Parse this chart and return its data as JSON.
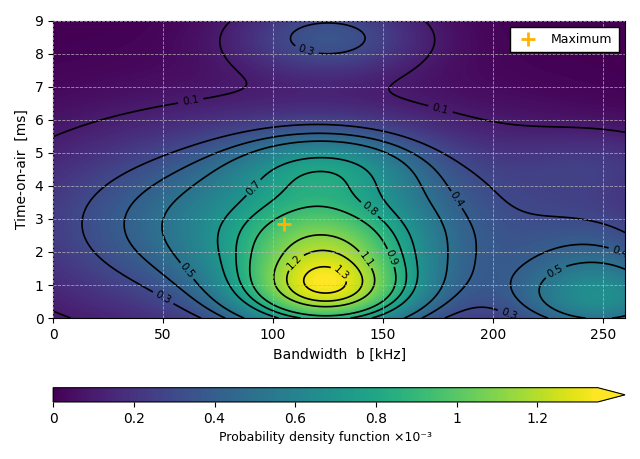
{
  "x_range": [
    0,
    260
  ],
  "y_range": [
    0,
    9
  ],
  "xlabel": "Bandwidth  b [kHz]",
  "ylabel": "Time-on-air  [ms]",
  "colorbar_label": "Probability density function ×10⁻³",
  "colorbar_ticks": [
    0,
    0.2,
    0.4,
    0.6,
    0.8,
    1.0,
    1.2
  ],
  "contour_levels": [
    0.1,
    0.3,
    0.4,
    0.5,
    0.7,
    0.8,
    0.9,
    1.1,
    1.2,
    1.3
  ],
  "max_point_b": 105,
  "max_point_t": 2.85,
  "max_value": 1.35,
  "figsize": [
    6.4,
    4.59
  ],
  "dpi": 100,
  "background_color": "#ffffff"
}
